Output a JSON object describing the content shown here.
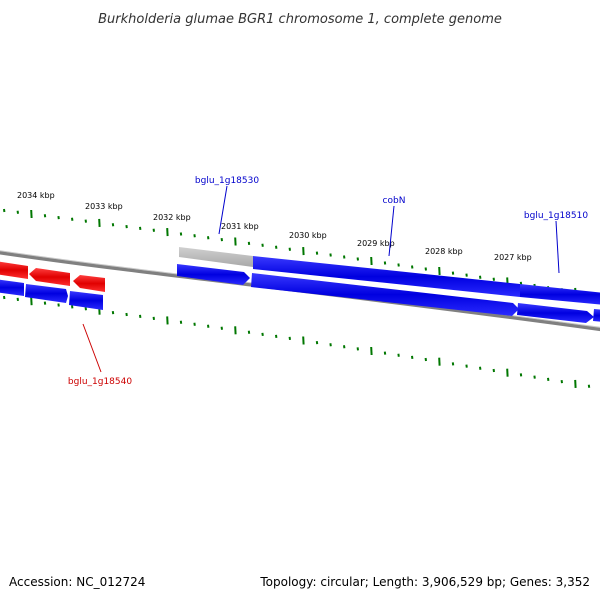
{
  "title": "Burkholderia glumae BGR1 chromosome 1, complete genome",
  "scale_labels": [
    "2034 kbp",
    "2033 kbp",
    "2032 kbp",
    "2031 kbp",
    "2030 kbp",
    "2029 kbp",
    "2028 kbp",
    "2027 kbp"
  ],
  "gene_labels": {
    "g18530": "bglu_1g18530",
    "cobN": "cobN",
    "g18510": "bglu_1g18510",
    "g18540": "bglu_1g18540"
  },
  "colors": {
    "forward": "#0000ee",
    "reverse": "#ee0000",
    "rna": "#bbbbbb",
    "ticks": "#007700",
    "label_blue": "#0000cc",
    "label_red": "#cc0000"
  },
  "footer": {
    "accession": "Accession: NC_012724",
    "summary": "Topology: circular; Length: 3,906,529 bp; Genes: 3,352"
  }
}
